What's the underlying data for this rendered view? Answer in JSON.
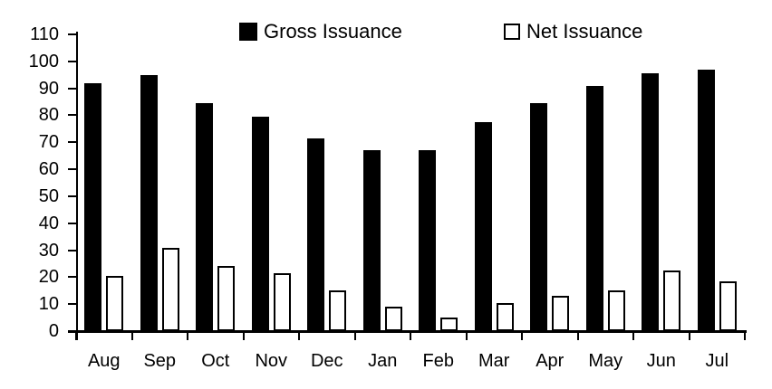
{
  "chart_data": {
    "type": "bar",
    "title": "",
    "xlabel": "",
    "ylabel": "",
    "categories": [
      "Aug",
      "Sep",
      "Oct",
      "Nov",
      "Dec",
      "Jan",
      "Feb",
      "Mar",
      "Apr",
      "May",
      "Jun",
      "Jul"
    ],
    "series": [
      {
        "name": "Gross Issuance",
        "fill": "solid",
        "color": "#000000",
        "values": [
          92,
          95,
          84.5,
          79.5,
          71.5,
          67,
          67,
          77.5,
          84.5,
          91,
          95.5,
          97
        ]
      },
      {
        "name": "Net Issuance",
        "fill": "outline",
        "color": "#ffffff",
        "border_color": "#000000",
        "values": [
          20.5,
          31,
          24,
          21.5,
          15,
          9,
          5,
          10.5,
          13,
          15,
          22.5,
          18.5
        ]
      }
    ],
    "ylim": [
      0,
      110
    ],
    "yticks": [
      0,
      10,
      20,
      30,
      40,
      50,
      60,
      70,
      80,
      90,
      100,
      110
    ],
    "grid": false,
    "legend_position": "top",
    "axis_color": "#000000",
    "background_color": "#ffffff"
  }
}
